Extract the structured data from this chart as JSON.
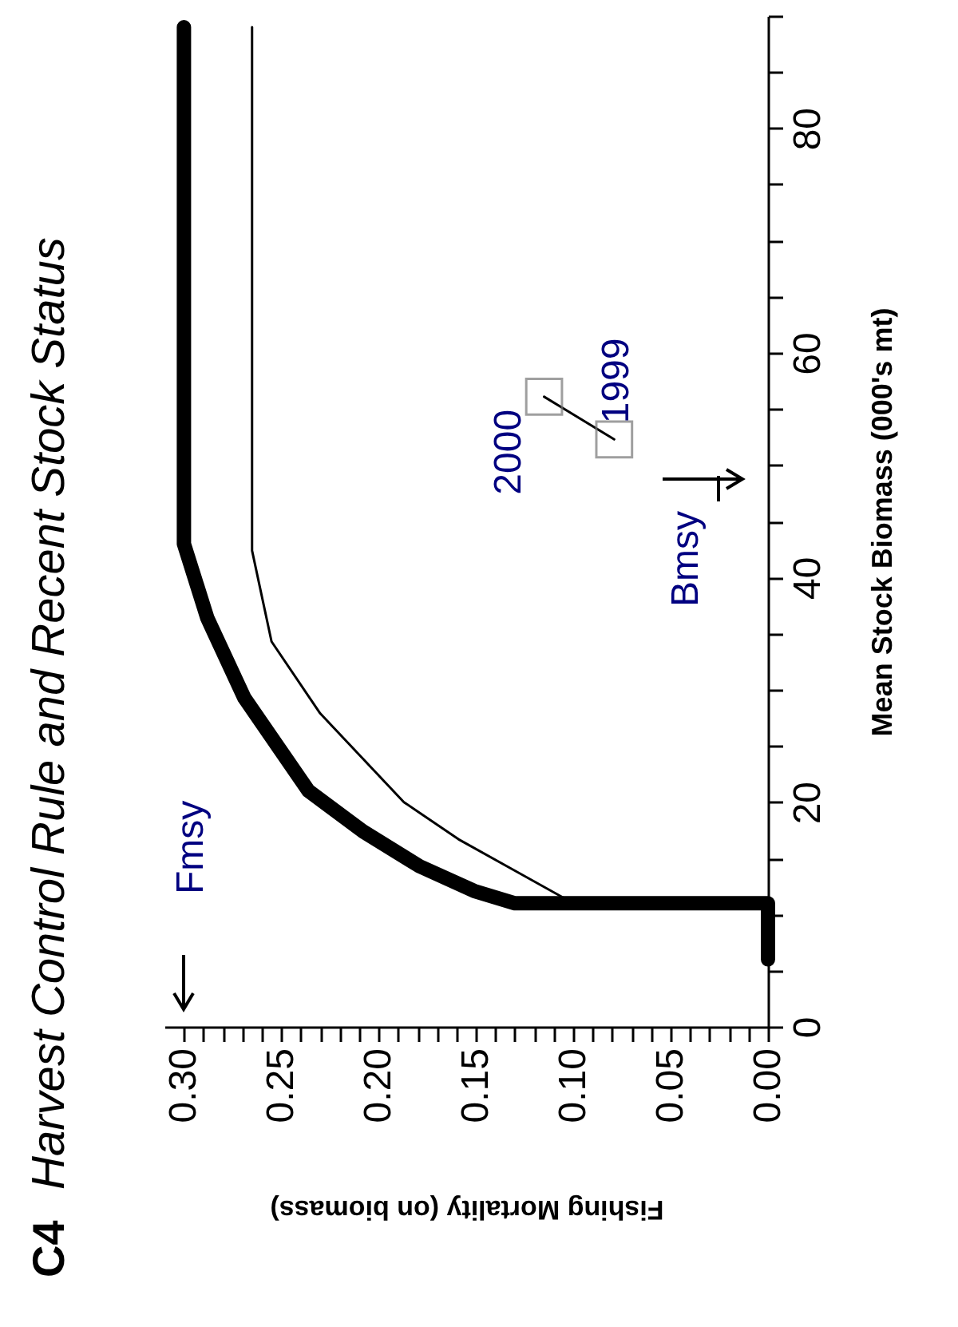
{
  "chart_data": {
    "type": "line",
    "title": "Harvest Control Rule and Recent Stock Status",
    "xlabel": "Fishing Mortality (on biomass)",
    "ylabel": "Mean Stock Biomass (000's mt)",
    "xlim": [
      0.31,
      0
    ],
    "xticks": [
      {
        "value": 0,
        "label": "0.00"
      },
      {
        "value": 0.01,
        "label": null
      },
      {
        "value": 0.02,
        "label": null
      },
      {
        "value": 0.03,
        "label": null
      },
      {
        "value": 0.04,
        "label": null
      },
      {
        "value": 0.05,
        "label": "0.05"
      },
      {
        "value": 0.06,
        "label": null
      },
      {
        "value": 0.07,
        "label": null
      },
      {
        "value": 0.08,
        "label": null
      },
      {
        "value": 0.09,
        "label": null
      },
      {
        "value": 0.1,
        "label": "0.10"
      },
      {
        "value": 0.11,
        "label": null
      },
      {
        "value": 0.12,
        "label": null
      },
      {
        "value": 0.13,
        "label": null
      },
      {
        "value": 0.14,
        "label": null
      },
      {
        "value": 0.15,
        "label": "0.15"
      },
      {
        "value": 0.16,
        "label": null
      },
      {
        "value": 0.17,
        "label": null
      },
      {
        "value": 0.18,
        "label": null
      },
      {
        "value": 0.19,
        "label": null
      },
      {
        "value": 0.2,
        "label": "0.20"
      },
      {
        "value": 0.21,
        "label": null
      },
      {
        "value": 0.22,
        "label": null
      },
      {
        "value": 0.23,
        "label": null
      },
      {
        "value": 0.24,
        "label": null
      },
      {
        "value": 0.25,
        "label": "0.25"
      },
      {
        "value": 0.26,
        "label": null
      },
      {
        "value": 0.27,
        "label": null
      },
      {
        "value": 0.28,
        "label": null
      },
      {
        "value": 0.29,
        "label": null
      },
      {
        "value": 0.3,
        "label": "0.30"
      }
    ],
    "ylim": [
      0,
      90
    ],
    "yticks": [
      0,
      {
        "value": 5,
        "label": null
      },
      {
        "value": 10,
        "label": null
      },
      {
        "value": 15,
        "label": null
      },
      20,
      {
        "value": 25,
        "label": null
      },
      {
        "value": 30,
        "label": null
      },
      {
        "value": 35,
        "label": null
      },
      40,
      {
        "value": 45,
        "label": null
      },
      {
        "value": 50,
        "label": null
      },
      {
        "value": 55,
        "label": null
      },
      60,
      {
        "value": 65,
        "label": null
      },
      {
        "value": 70,
        "label": null
      },
      {
        "value": 75,
        "label": null
      },
      80,
      {
        "value": 85,
        "label": null
      },
      {
        "value": 90,
        "label": null
      }
    ],
    "series": [
      {
        "color": "#000000",
        "x": [
          0,
          0,
          0.13,
          0.151,
          0.179,
          0.208,
          0.236,
          0.269,
          0.288,
          0.3,
          0.3
        ],
        "values": [
          6,
          11,
          11,
          12.1,
          14.3,
          17.4,
          21,
          29.3,
          36.4,
          43,
          89
        ]
      },
      {
        "color": "#000000",
        "x": [
          0.1,
          0.13,
          0.159,
          0.187,
          0.23,
          0.255,
          0.265,
          0.265
        ],
        "values": [
          11,
          13.9,
          16.7,
          20,
          27.9,
          34.3,
          42.4,
          89
        ]
      },
      {
        "color": "#000000",
        "x": [
          0.079,
          0.115
        ],
        "values": [
          52.3,
          56.1
        ],
        "marker": "square"
      }
    ],
    "annotations": [
      "C4",
      "Fmsy",
      "Bmsy",
      {
        "text": "1999",
        "x": 0.079,
        "y": 52.3
      },
      {
        "text": "2000",
        "x": 0.115,
        "y": 56.1
      }
    ],
    "grid": false
  }
}
